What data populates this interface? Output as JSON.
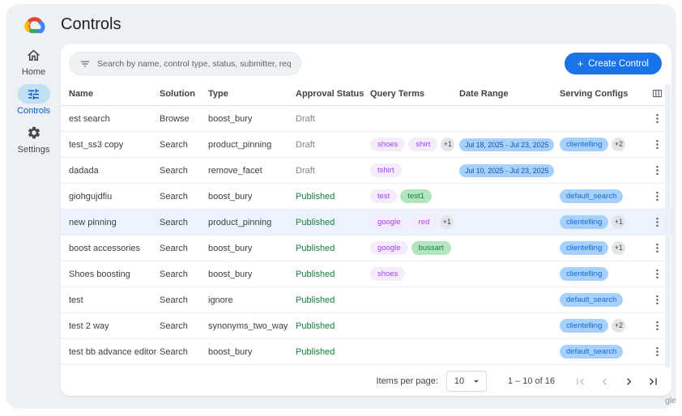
{
  "app": {
    "title": "Controls",
    "watermark": "gle"
  },
  "sidebar": {
    "items": [
      {
        "label": "Home",
        "icon": "home-icon",
        "active": false
      },
      {
        "label": "Controls",
        "icon": "tune-icon",
        "active": true
      },
      {
        "label": "Settings",
        "icon": "gear-icon",
        "active": false
      }
    ]
  },
  "toolbar": {
    "search_placeholder": "Search by name, control type, status, submitter, requested on",
    "plus": "+",
    "create_label": "Create Control"
  },
  "table": {
    "columns": [
      "Name",
      "Solution",
      "Type",
      "Approval Status",
      "Query Terms",
      "Date Range",
      "Serving Configs"
    ],
    "rows": [
      {
        "name": "est search",
        "solution": "Browse",
        "type": "boost_bury",
        "status": "Draft",
        "query_terms": [],
        "query_extra": "",
        "date_range": "",
        "serving_configs": [],
        "serving_extra": "",
        "highlighted": false
      },
      {
        "name": "test_ss3 copy",
        "solution": "Search",
        "type": "product_pinning",
        "status": "Draft",
        "query_terms": [
          {
            "label": "shoes",
            "color": "purple"
          },
          {
            "label": "shirt",
            "color": "purple"
          }
        ],
        "query_extra": "+1",
        "date_range": "Jul 18, 2025 - Jul 23, 2025",
        "serving_configs": [
          "clientelling"
        ],
        "serving_extra": "+2",
        "highlighted": false
      },
      {
        "name": "dadada",
        "solution": "Search",
        "type": "remove_facet",
        "status": "Draft",
        "query_terms": [
          {
            "label": "tshirt",
            "color": "purple"
          }
        ],
        "query_extra": "",
        "date_range": "Jul 10, 2025 - Jul 23, 2025",
        "serving_configs": [],
        "serving_extra": "",
        "highlighted": false
      },
      {
        "name": "giohgujdfiu",
        "solution": "Search",
        "type": "boost_bury",
        "status": "Published",
        "query_terms": [
          {
            "label": "test",
            "color": "purple"
          },
          {
            "label": "test1",
            "color": "green"
          }
        ],
        "query_extra": "",
        "date_range": "",
        "serving_configs": [
          "default_search"
        ],
        "serving_extra": "",
        "highlighted": false
      },
      {
        "name": "new pinning",
        "solution": "Search",
        "type": "product_pinning",
        "status": "Published",
        "query_terms": [
          {
            "label": "google",
            "color": "purple"
          },
          {
            "label": "red",
            "color": "purple"
          }
        ],
        "query_extra": "+1",
        "date_range": "",
        "serving_configs": [
          "clientelling"
        ],
        "serving_extra": "+1",
        "highlighted": true
      },
      {
        "name": "boost accessories",
        "solution": "Search",
        "type": "boost_bury",
        "status": "Published",
        "query_terms": [
          {
            "label": "google",
            "color": "purple"
          },
          {
            "label": "bussart",
            "color": "green"
          }
        ],
        "query_extra": "",
        "date_range": "",
        "serving_configs": [
          "clientelling"
        ],
        "serving_extra": "+1",
        "highlighted": false
      },
      {
        "name": "Shoes boosting",
        "solution": "Search",
        "type": "boost_bury",
        "status": "Published",
        "query_terms": [
          {
            "label": "shoes",
            "color": "purple"
          }
        ],
        "query_extra": "",
        "date_range": "",
        "serving_configs": [
          "clientelling"
        ],
        "serving_extra": "",
        "highlighted": false
      },
      {
        "name": "test",
        "solution": "Search",
        "type": "ignore",
        "status": "Published",
        "query_terms": [],
        "query_extra": "",
        "date_range": "",
        "serving_configs": [
          "default_search"
        ],
        "serving_extra": "",
        "highlighted": false
      },
      {
        "name": "test 2 way",
        "solution": "Search",
        "type": "synonyms_two_way",
        "status": "Published",
        "query_terms": [],
        "query_extra": "",
        "date_range": "",
        "serving_configs": [
          "clientelling"
        ],
        "serving_extra": "+2",
        "highlighted": false
      },
      {
        "name": "test bb advance editor",
        "solution": "Search",
        "type": "boost_bury",
        "status": "Published",
        "query_terms": [],
        "query_extra": "",
        "date_range": "",
        "serving_configs": [
          "default_search"
        ],
        "serving_extra": "",
        "highlighted": false
      }
    ]
  },
  "pagination": {
    "items_per_page_label": "Items per page:",
    "per_page": "10",
    "range_label": "1 – 10 of 16"
  },
  "colors": {
    "accent": "#1a73e8",
    "chip_purple_bg": "#f4ebfb",
    "chip_purple_text": "#a142f4",
    "chip_green_bg": "#b3e5c0",
    "chip_green_text": "#188038",
    "chip_blue_bg": "#a6d1fa",
    "chip_blue_text": "#1a5dc8",
    "chip_gray_bg": "#e3e5e8",
    "chip_gray_text": "#444746",
    "status_published": "#188038",
    "status_draft": "#80868b",
    "active_nav_pill": "#c2e0f3"
  }
}
